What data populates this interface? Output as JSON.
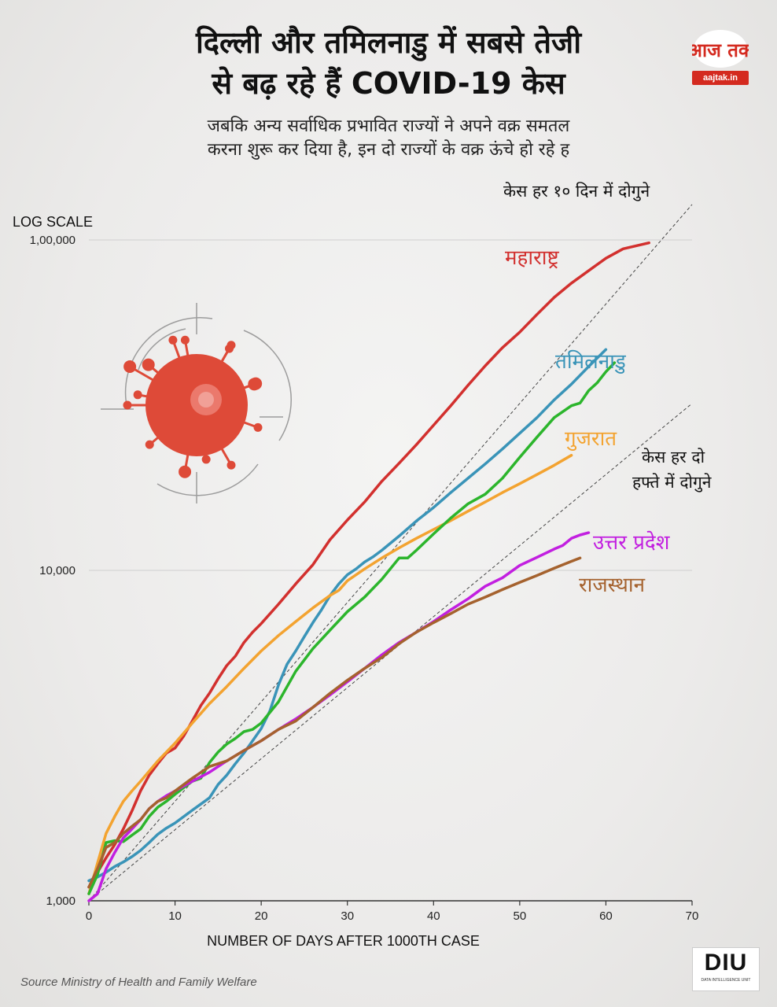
{
  "header": {
    "title_line1": "दिल्ली और तमिलनाडु में सबसे तेजी",
    "title_line2": "से बढ़ रहे हैं COVID-19 केस",
    "subtitle_line1": "जबकि अन्य सर्वाधिक प्रभावित राज्यों ने अपने वक्र समतल",
    "subtitle_line2": "करना शुरू कर दिया है, इन दो राज्यों के वक्र ऊंचे हो रहे ह"
  },
  "logo": {
    "brand": "आज तक",
    "site": "aajtak.in"
  },
  "footer": {
    "source": "Source Ministry of Health and Family Welfare",
    "badge": "DIU",
    "badge_tag": "DATA INTELLIGENCE UNIT"
  },
  "colors": {
    "maharashtra": "#d2302e",
    "tamilnadu": "#3a94b8",
    "gujarat": "#f3a330",
    "green": "#2cb52c",
    "up": "#c21fe0",
    "rajasthan": "#a5622e",
    "virus": "#de4a38"
  },
  "chart_data": {
    "type": "line",
    "scale": "log",
    "scale_label": "LOG SCALE",
    "xlabel": "NUMBER OF DAYS AFTER 1000TH CASE",
    "xlim": [
      0,
      70
    ],
    "ylim": [
      1000,
      100000
    ],
    "x_ticks": [
      0,
      10,
      20,
      30,
      40,
      50,
      60,
      70
    ],
    "x_tick_labels": [
      "0",
      "10",
      "20",
      "30",
      "40",
      "50",
      "60",
      "70"
    ],
    "y_ticks": [
      1000,
      10000,
      100000
    ],
    "y_tick_labels": [
      "1,000",
      "10,000",
      "1,00,000"
    ],
    "annotations": {
      "ten_day_line1": "केस हर १० दिन में दोगुने",
      "two_week_line1": "केस हर दो",
      "two_week_line2": "हफ्ते में दोगुने"
    },
    "reference_lines": [
      {
        "name": "doubling-every-10-days",
        "x": [
          0,
          70
        ],
        "y": [
          1000,
          128000
        ]
      },
      {
        "name": "doubling-every-2-weeks",
        "x": [
          0,
          70
        ],
        "y": [
          1000,
          32000
        ]
      }
    ],
    "series": [
      {
        "key": "maharashtra",
        "name": "महाराष्ट्र",
        "x": [
          0,
          1,
          2,
          3,
          4,
          5,
          6,
          7,
          8,
          9,
          10,
          11,
          12,
          13,
          14,
          15,
          16,
          17,
          18,
          19,
          20,
          22,
          24,
          26,
          28,
          30,
          32,
          34,
          36,
          38,
          40,
          42,
          44,
          46,
          48,
          50,
          52,
          54,
          56,
          58,
          60,
          62,
          65
        ],
        "y": [
          1100,
          1220,
          1350,
          1480,
          1650,
          1870,
          2150,
          2400,
          2600,
          2800,
          2900,
          3150,
          3500,
          3900,
          4250,
          4700,
          5150,
          5500,
          6050,
          6500,
          6900,
          7900,
          9100,
          10400,
          12400,
          14200,
          16100,
          18600,
          21100,
          24000,
          27500,
          31500,
          36300,
          41600,
          47200,
          52600,
          59500,
          67000,
          74000,
          80700,
          88000,
          94000,
          98000
        ]
      },
      {
        "key": "tamilnadu",
        "name": "तमिलनाडु",
        "x": [
          0,
          1,
          2,
          3,
          4,
          5,
          6,
          7,
          8,
          9,
          10,
          12,
          14,
          15,
          16,
          17,
          18,
          19,
          20,
          21,
          22,
          23,
          24,
          25,
          26,
          27,
          28,
          29,
          30,
          31,
          32,
          33,
          34,
          36,
          38,
          40,
          42,
          44,
          46,
          48,
          50,
          52,
          54,
          56,
          58,
          60
        ],
        "y": [
          1150,
          1180,
          1220,
          1270,
          1310,
          1360,
          1420,
          1500,
          1590,
          1660,
          1720,
          1880,
          2050,
          2250,
          2400,
          2600,
          2800,
          3050,
          3320,
          3750,
          4500,
          5200,
          5700,
          6300,
          6950,
          7600,
          8400,
          9100,
          9700,
          10100,
          10600,
          11000,
          11500,
          12700,
          14100,
          15500,
          17200,
          19000,
          21000,
          23300,
          26000,
          29000,
          32800,
          36600,
          41400,
          46600
        ]
      },
      {
        "key": "gujarat",
        "name": "गुजरात",
        "x": [
          0,
          1,
          2,
          3,
          4,
          5,
          6,
          8,
          10,
          12,
          14,
          16,
          18,
          20,
          22,
          24,
          26,
          28,
          29,
          30,
          32,
          34,
          36,
          38,
          40,
          42,
          44,
          46,
          48,
          50,
          52,
          54,
          56
        ],
        "y": [
          1050,
          1300,
          1600,
          1800,
          2000,
          2150,
          2300,
          2650,
          3000,
          3450,
          3950,
          4450,
          5050,
          5700,
          6350,
          7000,
          7700,
          8400,
          8700,
          9300,
          10100,
          10900,
          11700,
          12500,
          13300,
          14150,
          15100,
          16100,
          17200,
          18300,
          19500,
          20800,
          22300
        ]
      },
      {
        "key": "green",
        "name": "",
        "x": [
          0,
          1,
          2,
          3,
          4,
          5,
          6,
          7,
          8,
          9,
          10,
          11,
          12,
          13,
          14,
          15,
          16,
          17,
          18,
          19,
          20,
          22,
          24,
          26,
          28,
          30,
          32,
          34,
          36,
          37,
          38,
          40,
          42,
          44,
          46,
          48,
          50,
          52,
          54,
          56,
          57,
          58,
          59,
          60,
          61
        ],
        "y": [
          1050,
          1200,
          1500,
          1520,
          1510,
          1580,
          1650,
          1800,
          1920,
          2000,
          2100,
          2200,
          2300,
          2350,
          2620,
          2820,
          2980,
          3100,
          3250,
          3300,
          3450,
          4000,
          4950,
          5800,
          6600,
          7500,
          8300,
          9400,
          10900,
          10900,
          11500,
          12900,
          14400,
          15900,
          17000,
          19000,
          22000,
          25300,
          29000,
          31500,
          32100,
          35000,
          37000,
          39900,
          42500
        ]
      },
      {
        "key": "up",
        "name": "उत्तर प्रदेश",
        "x": [
          0,
          1,
          2,
          3,
          4,
          5,
          6,
          7,
          8,
          9,
          10,
          12,
          14,
          16,
          18,
          20,
          22,
          24,
          26,
          28,
          30,
          32,
          34,
          36,
          38,
          40,
          42,
          44,
          46,
          48,
          50,
          52,
          54,
          55,
          56,
          57,
          58
        ],
        "y": [
          1000,
          1050,
          1250,
          1400,
          1550,
          1650,
          1760,
          1900,
          2000,
          2080,
          2150,
          2300,
          2450,
          2650,
          2850,
          3050,
          3300,
          3550,
          3850,
          4200,
          4600,
          5050,
          5550,
          6050,
          6500,
          7000,
          7600,
          8200,
          8950,
          9500,
          10350,
          10950,
          11600,
          11900,
          12500,
          12800,
          13000
        ]
      },
      {
        "key": "rajasthan",
        "name": "राजस्थान",
        "x": [
          0,
          1,
          2,
          3,
          4,
          5,
          6,
          7,
          8,
          9,
          10,
          12,
          14,
          16,
          18,
          20,
          22,
          24,
          26,
          28,
          30,
          32,
          34,
          36,
          38,
          40,
          42,
          44,
          46,
          48,
          50,
          52,
          54,
          56,
          57
        ],
        "y": [
          1100,
          1250,
          1450,
          1500,
          1600,
          1680,
          1760,
          1900,
          2000,
          2050,
          2150,
          2350,
          2550,
          2650,
          2850,
          3050,
          3300,
          3500,
          3850,
          4250,
          4650,
          5050,
          5450,
          6000,
          6500,
          6950,
          7400,
          7900,
          8300,
          8750,
          9200,
          9650,
          10150,
          10650,
          10900
        ]
      }
    ],
    "series_labels": {
      "maharashtra": "महाराष्ट्र",
      "tamilnadu": "तमिलनाडु",
      "gujarat": "गुजरात",
      "up": "उत्तर प्रदेश",
      "rajasthan": "राजस्थान"
    }
  }
}
